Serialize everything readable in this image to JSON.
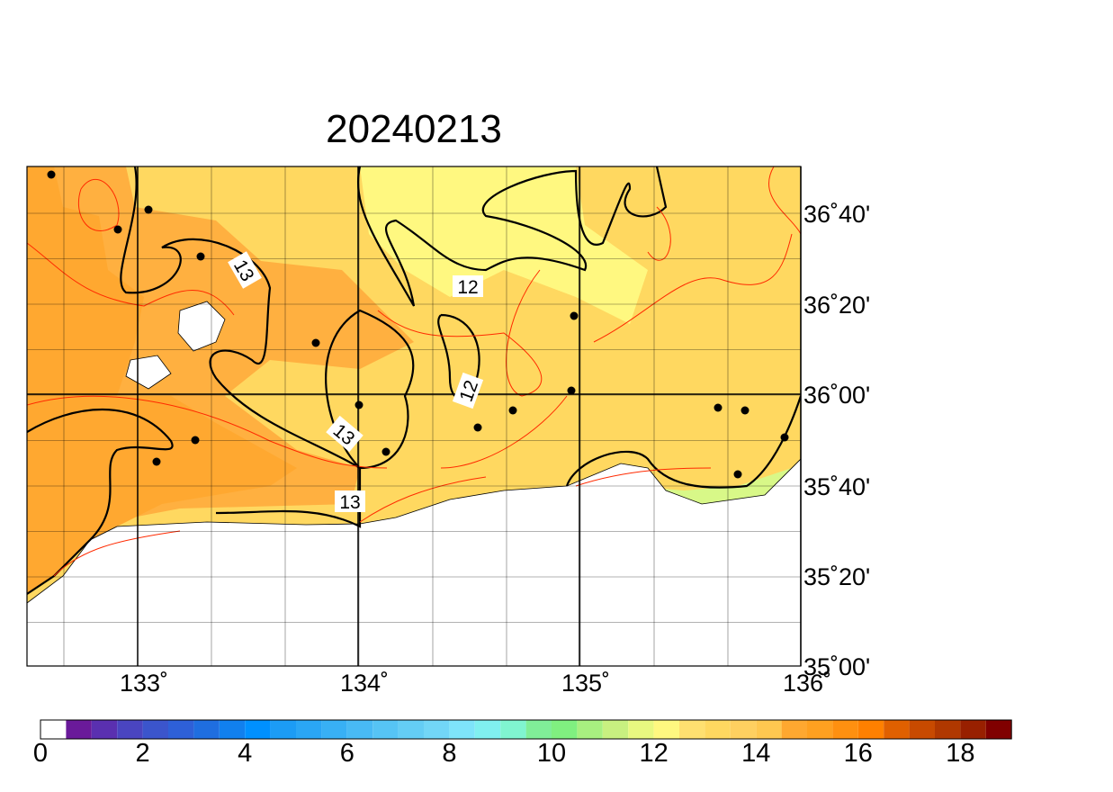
{
  "title": "20240213",
  "lon_labels": [
    "133˚",
    "134˚",
    "135˚",
    "136˚"
  ],
  "lat_labels": [
    "36˚40'",
    "36˚20'",
    "36˚00'",
    "35˚40'",
    "35˚20'",
    "35˚00'"
  ],
  "contour_labels": [
    "13",
    "13",
    "13",
    "12",
    "12"
  ],
  "colorbar": {
    "colors": [
      "#ffffff",
      "#6a1a9a",
      "#5a30b0",
      "#4a45c0",
      "#3b55cc",
      "#2e60d8",
      "#1f6ee0",
      "#1180ee",
      "#0090ff",
      "#1c9cf5",
      "#2aa6f5",
      "#38b0f5",
      "#48baf5",
      "#56c4f5",
      "#64cdf5",
      "#72d6f7",
      "#7ee4fa",
      "#80f0f0",
      "#80f5d0",
      "#80ee98",
      "#80f080",
      "#a8f080",
      "#c8f080",
      "#e8f880",
      "#fff880",
      "#ffe070",
      "#ffd860",
      "#ffd060",
      "#ffc850",
      "#ffa830",
      "#ffa020",
      "#ff9010",
      "#ff8000",
      "#e06000",
      "#c84a00",
      "#b03800",
      "#982000",
      "#800000"
    ],
    "labels": [
      0,
      2,
      4,
      6,
      8,
      10,
      12,
      14,
      16,
      18
    ]
  }
}
